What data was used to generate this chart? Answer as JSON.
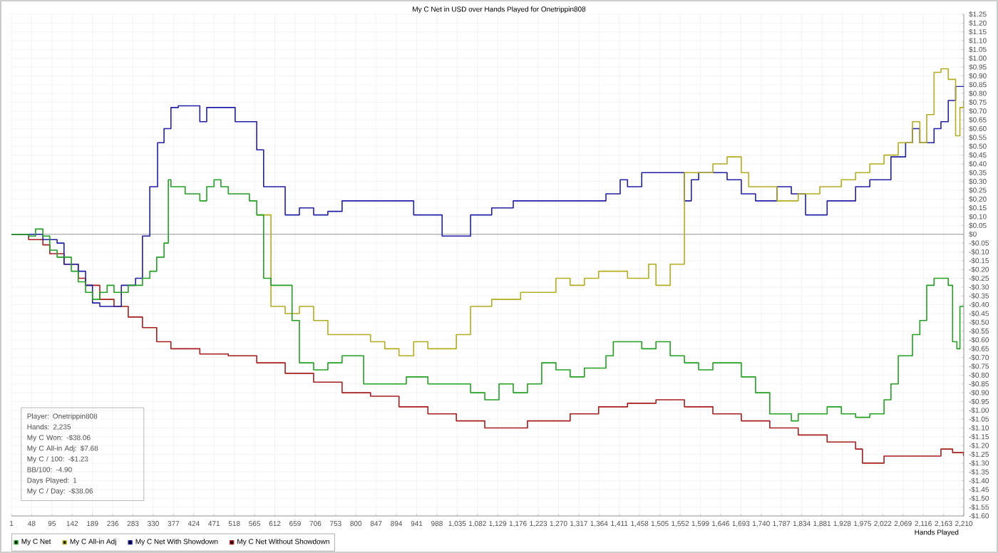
{
  "chart_data": {
    "type": "step",
    "title": "My C Net in USD over Hands Played for Onetrippin808",
    "xlabel": "Hands Played",
    "grid": true,
    "legend": "bottom left",
    "xlim": [
      1,
      2210
    ],
    "ylim": [
      -1.6,
      1.25
    ],
    "xticks": [
      1,
      48,
      95,
      142,
      189,
      236,
      283,
      330,
      377,
      424,
      471,
      518,
      565,
      612,
      659,
      706,
      753,
      800,
      847,
      894,
      941,
      988,
      {
        "value": 1035,
        "label": "1,035"
      },
      {
        "value": 1082,
        "label": "1,082"
      },
      {
        "value": 1129,
        "label": "1,129"
      },
      {
        "value": 1176,
        "label": "1,176"
      },
      {
        "value": 1223,
        "label": "1,223"
      },
      {
        "value": 1270,
        "label": "1,270"
      },
      {
        "value": 1317,
        "label": "1,317"
      },
      {
        "value": 1364,
        "label": "1,364"
      },
      {
        "value": 1411,
        "label": "1,411"
      },
      {
        "value": 1458,
        "label": "1,458"
      },
      {
        "value": 1505,
        "label": "1,505"
      },
      {
        "value": 1552,
        "label": "1,552"
      },
      {
        "value": 1599,
        "label": "1,599"
      },
      {
        "value": 1646,
        "label": "1,646"
      },
      {
        "value": 1693,
        "label": "1,693"
      },
      {
        "value": 1740,
        "label": "1,740"
      },
      {
        "value": 1787,
        "label": "1,787"
      },
      {
        "value": 1834,
        "label": "1,834"
      },
      {
        "value": 1881,
        "label": "1,881"
      },
      {
        "value": 1928,
        "label": "1,928"
      },
      {
        "value": 1975,
        "label": "1,975"
      },
      {
        "value": 2022,
        "label": "2,022"
      },
      {
        "value": 2069,
        "label": "2,069"
      },
      {
        "value": 2116,
        "label": "2,116"
      },
      {
        "value": 2163,
        "label": "2,163"
      },
      {
        "value": 2210,
        "label": "2,210"
      }
    ],
    "yticks": [
      {
        "value": -1.6,
        "label": "-$1.60"
      },
      {
        "value": -1.55,
        "label": "-$1.55"
      },
      {
        "value": -1.5,
        "label": "-$1.50"
      },
      {
        "value": -1.45,
        "label": "-$1.45"
      },
      {
        "value": -1.4,
        "label": "-$1.40"
      },
      {
        "value": -1.35,
        "label": "-$1.35"
      },
      {
        "value": -1.3,
        "label": "-$1.30"
      },
      {
        "value": -1.25,
        "label": "-$1.25"
      },
      {
        "value": -1.2,
        "label": "-$1.20"
      },
      {
        "value": -1.15,
        "label": "-$1.15"
      },
      {
        "value": -1.1,
        "label": "-$1.10"
      },
      {
        "value": -1.05,
        "label": "-$1.05"
      },
      {
        "value": -1.0,
        "label": "-$1.00"
      },
      {
        "value": -0.95,
        "label": "-$0.95"
      },
      {
        "value": -0.9,
        "label": "-$0.90"
      },
      {
        "value": -0.85,
        "label": "-$0.85"
      },
      {
        "value": -0.8,
        "label": "-$0.80"
      },
      {
        "value": -0.75,
        "label": "-$0.75"
      },
      {
        "value": -0.7,
        "label": "-$0.70"
      },
      {
        "value": -0.65,
        "label": "-$0.65"
      },
      {
        "value": -0.6,
        "label": "-$0.60"
      },
      {
        "value": -0.55,
        "label": "-$0.55"
      },
      {
        "value": -0.5,
        "label": "-$0.50"
      },
      {
        "value": -0.45,
        "label": "-$0.45"
      },
      {
        "value": -0.4,
        "label": "-$0.40"
      },
      {
        "value": -0.35,
        "label": "-$0.35"
      },
      {
        "value": -0.3,
        "label": "-$0.30"
      },
      {
        "value": -0.25,
        "label": "-$0.25"
      },
      {
        "value": -0.2,
        "label": "-$0.20"
      },
      {
        "value": -0.15,
        "label": "-$0.15"
      },
      {
        "value": -0.1,
        "label": "-$0.10"
      },
      {
        "value": -0.05,
        "label": "-$0.05"
      },
      {
        "value": 0,
        "label": "$0"
      },
      {
        "value": 0.05,
        "label": "$0.05"
      },
      {
        "value": 0.1,
        "label": "$0.10"
      },
      {
        "value": 0.15,
        "label": "$0.15"
      },
      {
        "value": 0.2,
        "label": "$0.20"
      },
      {
        "value": 0.25,
        "label": "$0.25"
      },
      {
        "value": 0.3,
        "label": "$0.30"
      },
      {
        "value": 0.35,
        "label": "$0.35"
      },
      {
        "value": 0.4,
        "label": "$0.40"
      },
      {
        "value": 0.45,
        "label": "$0.45"
      },
      {
        "value": 0.5,
        "label": "$0.50"
      },
      {
        "value": 0.55,
        "label": "$0.55"
      },
      {
        "value": 0.6,
        "label": "$0.60"
      },
      {
        "value": 0.65,
        "label": "$0.65"
      },
      {
        "value": 0.7,
        "label": "$0.70"
      },
      {
        "value": 0.75,
        "label": "$0.75"
      },
      {
        "value": 0.8,
        "label": "$0.80"
      },
      {
        "value": 0.85,
        "label": "$0.85"
      },
      {
        "value": 0.9,
        "label": "$0.90"
      },
      {
        "value": 0.95,
        "label": "$0.95"
      },
      {
        "value": 1.0,
        "label": "$1.00"
      },
      {
        "value": 1.05,
        "label": "$1.05"
      },
      {
        "value": 1.1,
        "label": "$1.10"
      },
      {
        "value": 1.15,
        "label": "$1.15"
      },
      {
        "value": 1.2,
        "label": "$1.20"
      },
      {
        "value": 1.25,
        "label": "$1.25"
      }
    ],
    "ref_lines": [
      {
        "axis": "y",
        "value": 0,
        "color": "#999999"
      }
    ],
    "annotations": [
      "Player: Onetrippin808",
      "Hands: 2,235",
      "My C Won: -$38.06",
      "My C All-in Adj: $7.68",
      "My C / 100: -$1.23",
      "BB/100: -4.90",
      "Days Played: 1",
      "My C / Day: -$38.06"
    ],
    "series": [
      {
        "name": "My C Net",
        "color": "#22a022",
        "x": [
          1,
          41,
          57,
          74,
          90,
          107,
          140,
          156,
          173,
          189,
          206,
          223,
          239,
          272,
          305,
          322,
          338,
          355,
          365,
          371,
          404,
          438,
          454,
          471,
          487,
          504,
          537,
          553,
          570,
          586,
          603,
          636,
          652,
          669,
          702,
          735,
          768,
          818,
          867,
          917,
          967,
          1066,
          1099,
          1132,
          1165,
          1198,
          1231,
          1264,
          1297,
          1330,
          1380,
          1397,
          1430,
          1463,
          1496,
          1529,
          1562,
          1595,
          1628,
          1661,
          1694,
          1727,
          1760,
          1810,
          1826,
          1893,
          1926,
          1959,
          1992,
          2025,
          2041,
          2058,
          2091,
          2108,
          2124,
          2141,
          2174,
          2184,
          2194,
          2201,
          2210
        ],
        "values": [
          0,
          -0.01,
          0.03,
          -0.01,
          -0.09,
          -0.13,
          -0.21,
          -0.27,
          -0.33,
          -0.37,
          -0.33,
          -0.29,
          -0.33,
          -0.29,
          -0.25,
          -0.21,
          -0.13,
          -0.05,
          0.31,
          0.27,
          0.23,
          0.19,
          0.27,
          0.31,
          0.27,
          0.23,
          0.23,
          0.19,
          0.11,
          -0.25,
          -0.29,
          -0.29,
          -0.49,
          -0.73,
          -0.77,
          -0.73,
          -0.69,
          -0.85,
          -0.85,
          -0.81,
          -0.85,
          -0.9,
          -0.94,
          -0.85,
          -0.9,
          -0.85,
          -0.73,
          -0.77,
          -0.81,
          -0.76,
          -0.69,
          -0.61,
          -0.61,
          -0.65,
          -0.61,
          -0.69,
          -0.73,
          -0.77,
          -0.73,
          -0.73,
          -0.81,
          -0.9,
          -1.02,
          -1.06,
          -1.02,
          -0.98,
          -1.02,
          -1.04,
          -1.02,
          -0.94,
          -0.85,
          -0.69,
          -0.57,
          -0.49,
          -0.29,
          -0.25,
          -0.29,
          -0.61,
          -0.65,
          -0.41,
          -0.41
        ]
      },
      {
        "name": "My C All-in Adj",
        "color": "#b3ad1f",
        "x": [
          570,
          603,
          636,
          669,
          702,
          735,
          768,
          834,
          867,
          900,
          934,
          967,
          1000,
          1033,
          1066,
          1115,
          1148,
          1182,
          1231,
          1264,
          1297,
          1330,
          1363,
          1430,
          1479,
          1496,
          1529,
          1562,
          1595,
          1628,
          1661,
          1694,
          1711,
          1744,
          1777,
          1826,
          1876,
          1926,
          1959,
          1992,
          2025,
          2058,
          2091,
          2108,
          2124,
          2141,
          2157,
          2174,
          2191,
          2201,
          2210
        ],
        "values": [
          0.11,
          -0.41,
          -0.45,
          -0.41,
          -0.49,
          -0.57,
          -0.57,
          -0.61,
          -0.65,
          -0.69,
          -0.61,
          -0.65,
          -0.65,
          -0.57,
          -0.41,
          -0.37,
          -0.37,
          -0.33,
          -0.33,
          -0.25,
          -0.29,
          -0.25,
          -0.21,
          -0.25,
          -0.17,
          -0.29,
          -0.17,
          0.35,
          0.35,
          0.4,
          0.44,
          0.35,
          0.27,
          0.27,
          0.19,
          0.23,
          0.27,
          0.31,
          0.35,
          0.4,
          0.45,
          0.52,
          0.64,
          0.52,
          0.68,
          0.92,
          0.94,
          0.88,
          0.56,
          0.72,
          0.76
        ]
      },
      {
        "name": "My C Net With Showdown",
        "color": "#1f1fa8",
        "x": [
          1,
          57,
          74,
          107,
          123,
          156,
          173,
          189,
          206,
          239,
          256,
          289,
          305,
          322,
          340,
          355,
          371,
          388,
          421,
          438,
          454,
          520,
          553,
          570,
          586,
          619,
          636,
          669,
          702,
          735,
          768,
          900,
          934,
          983,
          1000,
          1033,
          1066,
          1115,
          1165,
          1297,
          1380,
          1413,
          1430,
          1463,
          1529,
          1562,
          1578,
          1595,
          1661,
          1694,
          1727,
          1777,
          1810,
          1843,
          1893,
          1959,
          1992,
          2041,
          2075,
          2091,
          2108,
          2141,
          2157,
          2174,
          2191,
          2210
        ],
        "values": [
          0,
          0,
          -0.03,
          -0.05,
          -0.17,
          -0.21,
          -0.29,
          -0.39,
          -0.41,
          -0.41,
          -0.29,
          -0.25,
          -0.01,
          0.27,
          0.52,
          0.6,
          0.72,
          0.73,
          0.73,
          0.64,
          0.72,
          0.64,
          0.64,
          0.48,
          0.27,
          0.27,
          0.11,
          0.15,
          0.11,
          0.13,
          0.19,
          0.19,
          0.11,
          0.11,
          -0.01,
          -0.01,
          0.11,
          0.15,
          0.19,
          0.19,
          0.23,
          0.31,
          0.27,
          0.35,
          0.35,
          0.19,
          0.31,
          0.35,
          0.31,
          0.23,
          0.19,
          0.27,
          0.23,
          0.11,
          0.19,
          0.27,
          0.31,
          0.44,
          0.52,
          0.6,
          0.52,
          0.6,
          0.64,
          0.76,
          0.84,
          0.84
        ]
      },
      {
        "name": "My C Net Without Showdown",
        "color": "#a81c1c",
        "x": [
          1,
          41,
          74,
          90,
          123,
          156,
          173,
          206,
          239,
          272,
          305,
          338,
          371,
          438,
          504,
          570,
          636,
          702,
          768,
          834,
          900,
          967,
          1033,
          1099,
          1132,
          1198,
          1264,
          1297,
          1363,
          1430,
          1496,
          1562,
          1628,
          1694,
          1760,
          1826,
          1893,
          1959,
          1975,
          2025,
          2091,
          2157,
          2184,
          2210
        ],
        "values": [
          0,
          -0.03,
          -0.06,
          -0.11,
          -0.17,
          -0.25,
          -0.29,
          -0.37,
          -0.41,
          -0.47,
          -0.53,
          -0.61,
          -0.65,
          -0.68,
          -0.69,
          -0.73,
          -0.79,
          -0.84,
          -0.9,
          -0.92,
          -0.98,
          -1.02,
          -1.06,
          -1.1,
          -1.1,
          -1.06,
          -1.06,
          -1.02,
          -0.98,
          -0.96,
          -0.94,
          -0.98,
          -1.02,
          -1.06,
          -1.1,
          -1.14,
          -1.18,
          -1.22,
          -1.3,
          -1.26,
          -1.26,
          -1.22,
          -1.24,
          -1.26
        ]
      }
    ]
  }
}
